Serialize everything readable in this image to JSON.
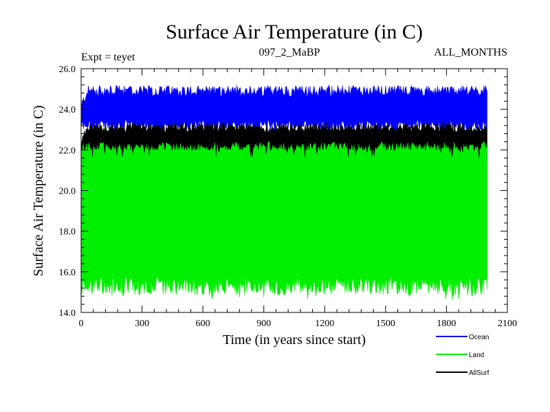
{
  "chart_data": {
    "type": "area",
    "title": "Surface Air Temperature (in C)",
    "subtitle_left": "Expt = teyet",
    "subtitle_center": "097_2_MaBP",
    "subtitle_right": "ALL_MONTHS",
    "xlabel": "Time (in years since start)",
    "ylabel": "Surface Air Temperature (in C)",
    "xlim": [
      0,
      2100
    ],
    "ylim": [
      14.0,
      26.0
    ],
    "x_ticks": [
      "0",
      "300",
      "600",
      "900",
      "1200",
      "1500",
      "1800",
      "2100"
    ],
    "y_ticks": [
      "14.0",
      "16.0",
      "18.0",
      "20.0",
      "22.0",
      "24.0",
      "26.0"
    ],
    "x_tick_values": [
      0,
      300,
      600,
      900,
      1200,
      1500,
      1800,
      2100
    ],
    "y_tick_values": [
      14,
      16,
      18,
      20,
      22,
      24,
      26
    ],
    "series": [
      {
        "name": "Land",
        "color": "#00ee00",
        "x_range": [
          0,
          2000
        ],
        "approx_band_min": 15.3,
        "approx_band_max": 22.6,
        "min_observed": 14.6,
        "max_observed": 23.0,
        "note": "seasonal cycle fills the band between the min and max envelopes"
      },
      {
        "name": "AllSurf",
        "color": "#000000",
        "x_range": [
          0,
          2000
        ],
        "approx_band_min": 22.2,
        "approx_band_max": 23.1,
        "min_observed": 21.6,
        "max_observed": 23.4
      },
      {
        "name": "Ocean",
        "color": "#0000ff",
        "x_range": [
          0,
          2000
        ],
        "approx_band_min": 23.2,
        "approx_band_max": 24.9,
        "min_observed": 22.7,
        "max_observed": 25.2
      }
    ],
    "legend": {
      "placement": "bottom-right",
      "entries": [
        {
          "label": "Ocean",
          "color": "#0000ff"
        },
        {
          "label": "Land",
          "color": "#00ee00"
        },
        {
          "label": "AllSurf",
          "color": "#000000"
        }
      ]
    }
  }
}
